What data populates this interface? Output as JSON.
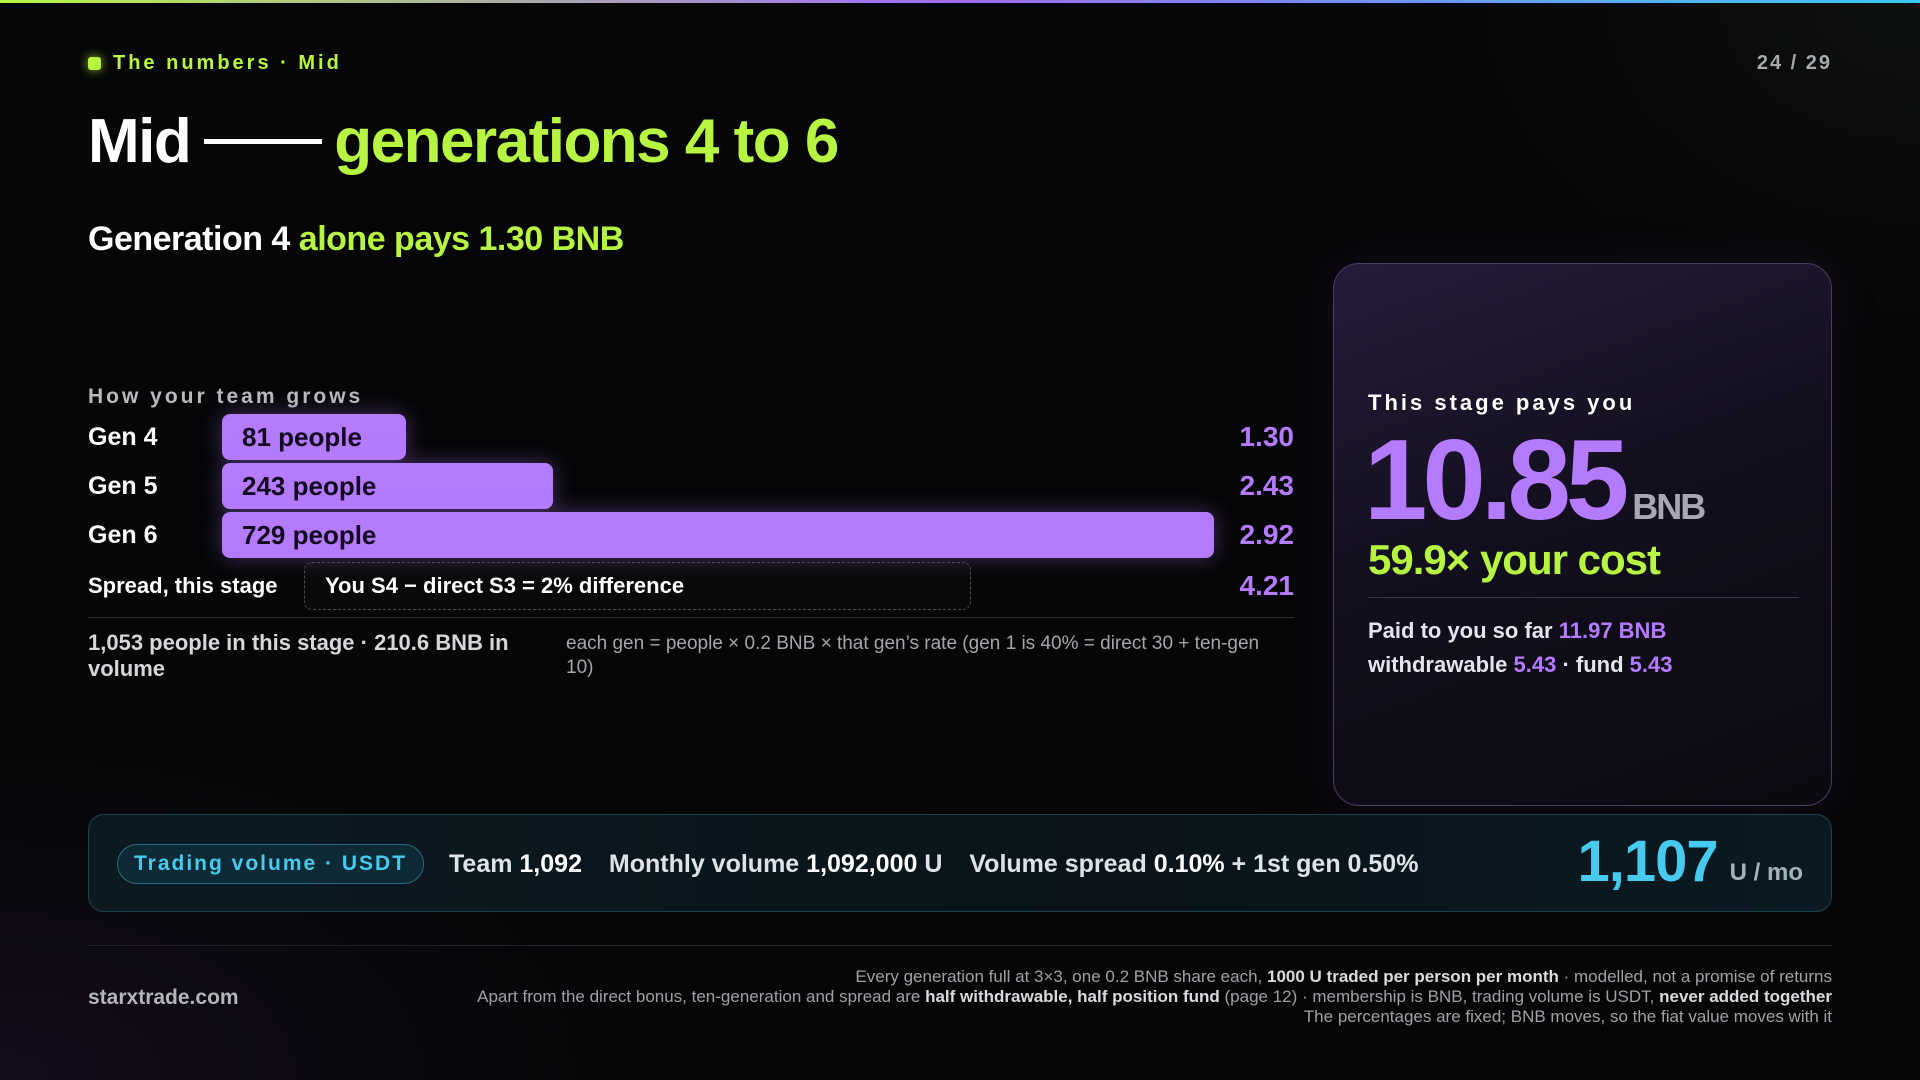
{
  "header": {
    "eyebrow": "The numbers · Mid",
    "pager": "24 / 29"
  },
  "title": {
    "lead": "Mid",
    "accent": "generations 4 to 6"
  },
  "subtitle": {
    "lead": "Generation 4",
    "accent": "alone pays 1.30 BNB"
  },
  "growth": {
    "label": "How your team grows",
    "max_people": 729,
    "rows": [
      {
        "gen": "Gen 4",
        "people": 81,
        "people_label": "81 people",
        "value": "1.30"
      },
      {
        "gen": "Gen 5",
        "people": 243,
        "people_label": "243 people",
        "value": "2.43"
      },
      {
        "gen": "Gen 6",
        "people": 729,
        "people_label": "729 people",
        "value": "2.92"
      }
    ],
    "spread": {
      "label": "Spread, this stage",
      "text": "You S4 − direct S3 = 2% difference",
      "value": "4.21"
    },
    "summary": "1,053 people in this stage · 210.6 BNB in volume",
    "formula": "each gen = people × 0.2 BNB × that gen’s rate (gen 1 is 40% = direct 30 + ten-gen 10)"
  },
  "card": {
    "label": "This stage pays you",
    "amount": "10.85",
    "unit": "BNB",
    "multiple": "59.9× your cost",
    "paid_prefix": "Paid to you so far",
    "paid_value": "11.97 BNB",
    "withdrawable_prefix": "withdrawable",
    "withdrawable_value": "5.43",
    "fund_prefix": "· fund",
    "fund_value": "5.43"
  },
  "trading": {
    "pill": "Trading volume · USDT",
    "team_label": "Team",
    "team_value": "1,092",
    "monthly_label": "Monthly volume",
    "monthly_value": "1,092,000",
    "monthly_unit": "U",
    "spread_label": "Volume spread",
    "spread_value": "0.10%",
    "first_gen": "+ 1st gen 0.50%",
    "total": "1,107",
    "total_unit": "U / mo"
  },
  "footer": {
    "site": "starxtrade.com",
    "line1_a": "Every generation full at 3×3, one 0.2 BNB share each,",
    "line1_b": "1000 U traded per person per month",
    "line1_c": "· modelled, not a promise of returns",
    "line2_a": "Apart from the direct bonus, ten-generation and spread are",
    "line2_b": "half withdrawable, half position fund",
    "line2_c": "(page 12) · membership is BNB, trading volume is USDT,",
    "line2_d": "never added together",
    "line3": "The percentages are fixed; BNB moves, so the fiat value moves with it"
  },
  "colors": {
    "green_accent": "#b7f542",
    "purple_accent": "#b47bff",
    "cyan_accent": "#46cbef",
    "background": "#060607"
  }
}
